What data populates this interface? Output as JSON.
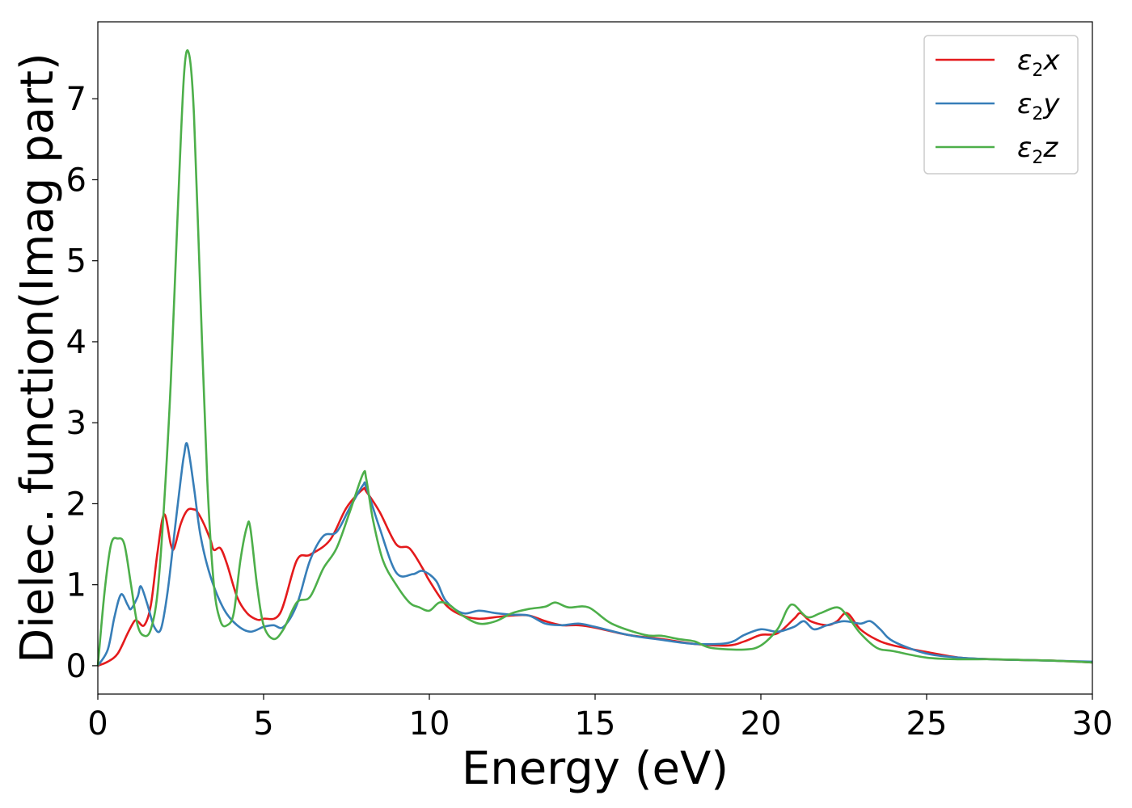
{
  "chart_data": {
    "type": "line",
    "xlabel": "Energy (eV)",
    "ylabel": "Dielec. function(Imag part)",
    "xlim": [
      0,
      30
    ],
    "ylim": [
      -0.35,
      7.95
    ],
    "xticks": [
      0,
      5,
      10,
      15,
      20,
      25,
      30
    ],
    "yticks": [
      0,
      1,
      2,
      3,
      4,
      5,
      6,
      7
    ],
    "grid": false,
    "legend": "top-right",
    "series": [
      {
        "name": "ε2x",
        "label_base": "ε",
        "label_sub": "2",
        "label_suffix": "x",
        "color": "#e41a1c",
        "x": [
          0,
          0.3,
          0.6,
          0.9,
          1.1,
          1.2,
          1.4,
          1.6,
          1.8,
          2.0,
          2.2,
          2.3,
          2.5,
          2.7,
          2.9,
          3.0,
          3.2,
          3.4,
          3.5,
          3.7,
          3.9,
          4.2,
          4.5,
          4.8,
          5.0,
          5.5,
          6.0,
          6.4,
          7.0,
          7.5,
          8.0,
          8.1,
          8.5,
          9.0,
          9.4,
          9.8,
          10.0,
          10.5,
          11.0,
          11.5,
          12.0,
          12.5,
          13.0,
          13.5,
          14.0,
          14.5,
          15.0,
          16.0,
          17.0,
          18.0,
          19.0,
          19.5,
          20.0,
          20.5,
          21.0,
          21.2,
          21.5,
          22.0,
          22.3,
          22.6,
          23.0,
          23.5,
          24.0,
          25.0,
          26.0,
          27.0,
          28.0,
          29.0,
          30.0
        ],
        "values": [
          0.0,
          0.05,
          0.15,
          0.4,
          0.55,
          0.55,
          0.5,
          0.75,
          1.4,
          1.87,
          1.5,
          1.45,
          1.75,
          1.92,
          1.93,
          1.9,
          1.75,
          1.55,
          1.43,
          1.45,
          1.25,
          0.85,
          0.65,
          0.57,
          0.58,
          0.65,
          1.3,
          1.37,
          1.55,
          1.95,
          2.18,
          2.15,
          1.9,
          1.5,
          1.45,
          1.2,
          1.05,
          0.75,
          0.62,
          0.58,
          0.6,
          0.62,
          0.62,
          0.55,
          0.5,
          0.5,
          0.47,
          0.38,
          0.33,
          0.27,
          0.25,
          0.3,
          0.38,
          0.4,
          0.58,
          0.65,
          0.55,
          0.5,
          0.55,
          0.65,
          0.45,
          0.32,
          0.25,
          0.17,
          0.1,
          0.08,
          0.07,
          0.06,
          0.04
        ]
      },
      {
        "name": "ε2y",
        "label_base": "ε",
        "label_sub": "2",
        "label_suffix": "y",
        "color": "#377eb8",
        "x": [
          0,
          0.3,
          0.5,
          0.7,
          0.9,
          1.0,
          1.2,
          1.3,
          1.5,
          1.7,
          1.9,
          2.1,
          2.3,
          2.5,
          2.6,
          2.7,
          2.9,
          3.1,
          3.4,
          3.8,
          4.2,
          4.6,
          5.0,
          5.3,
          5.6,
          6.0,
          6.4,
          6.8,
          7.2,
          7.6,
          8.0,
          8.1,
          8.5,
          9.0,
          9.5,
          9.8,
          10.2,
          10.5,
          11.0,
          11.5,
          12.0,
          12.5,
          13.0,
          13.5,
          14.0,
          14.5,
          15.0,
          16.0,
          17.0,
          18.0,
          19.0,
          19.5,
          20.0,
          20.5,
          21.0,
          21.3,
          21.6,
          22.0,
          22.5,
          23.0,
          23.3,
          23.6,
          24.0,
          25.0,
          26.0,
          27.0,
          28.0,
          29.0,
          30.0
        ],
        "values": [
          0.0,
          0.2,
          0.6,
          0.88,
          0.75,
          0.7,
          0.85,
          0.98,
          0.75,
          0.48,
          0.45,
          0.9,
          1.6,
          2.3,
          2.6,
          2.73,
          2.2,
          1.6,
          1.1,
          0.7,
          0.5,
          0.42,
          0.48,
          0.5,
          0.48,
          0.75,
          1.3,
          1.6,
          1.65,
          1.95,
          2.23,
          2.2,
          1.7,
          1.15,
          1.13,
          1.17,
          1.05,
          0.8,
          0.65,
          0.68,
          0.65,
          0.63,
          0.62,
          0.52,
          0.5,
          0.52,
          0.48,
          0.38,
          0.32,
          0.27,
          0.28,
          0.38,
          0.45,
          0.42,
          0.48,
          0.55,
          0.45,
          0.5,
          0.55,
          0.52,
          0.55,
          0.45,
          0.3,
          0.15,
          0.1,
          0.08,
          0.07,
          0.06,
          0.05
        ]
      },
      {
        "name": "ε2z",
        "label_base": "ε",
        "label_sub": "2",
        "label_suffix": "z",
        "color": "#4daf4a",
        "x": [
          0,
          0.2,
          0.4,
          0.6,
          0.8,
          1.0,
          1.2,
          1.4,
          1.6,
          1.8,
          2.0,
          2.2,
          2.4,
          2.6,
          2.75,
          2.9,
          3.1,
          3.3,
          3.5,
          3.7,
          3.9,
          4.1,
          4.3,
          4.5,
          4.6,
          4.8,
          5.0,
          5.3,
          5.6,
          6.0,
          6.4,
          6.8,
          7.2,
          7.6,
          8.0,
          8.1,
          8.3,
          8.6,
          9.0,
          9.4,
          9.7,
          10.0,
          10.3,
          10.6,
          11.0,
          11.5,
          12.0,
          12.5,
          13.0,
          13.5,
          13.8,
          14.2,
          14.8,
          15.5,
          16.5,
          17.0,
          17.5,
          18.0,
          18.5,
          19.5,
          20.0,
          20.5,
          20.8,
          21.0,
          21.4,
          21.8,
          22.3,
          22.6,
          23.0,
          23.5,
          24.0,
          25.0,
          26.0,
          27.0,
          28.0,
          29.0,
          30.0
        ],
        "values": [
          0.0,
          0.9,
          1.5,
          1.57,
          1.5,
          1.0,
          0.5,
          0.37,
          0.45,
          0.9,
          2.0,
          3.5,
          5.5,
          7.3,
          7.55,
          6.8,
          4.5,
          2.3,
          1.0,
          0.55,
          0.5,
          0.65,
          1.3,
          1.72,
          1.7,
          1.0,
          0.5,
          0.33,
          0.45,
          0.78,
          0.85,
          1.2,
          1.45,
          1.9,
          2.37,
          2.3,
          1.8,
          1.3,
          1.0,
          0.78,
          0.72,
          0.68,
          0.78,
          0.75,
          0.62,
          0.52,
          0.55,
          0.65,
          0.7,
          0.73,
          0.78,
          0.72,
          0.72,
          0.52,
          0.38,
          0.37,
          0.33,
          0.3,
          0.22,
          0.2,
          0.25,
          0.45,
          0.7,
          0.75,
          0.6,
          0.65,
          0.72,
          0.62,
          0.4,
          0.22,
          0.18,
          0.1,
          0.08,
          0.08,
          0.07,
          0.06,
          0.04
        ]
      }
    ]
  }
}
